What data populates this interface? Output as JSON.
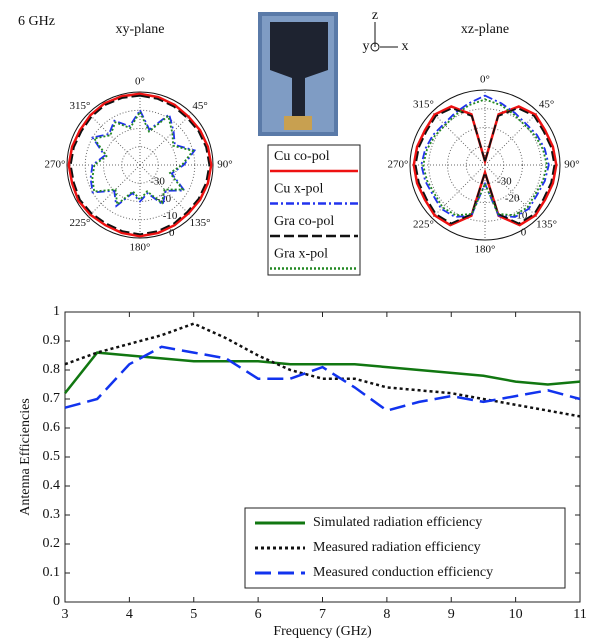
{
  "chart_data": [
    {
      "type": "polar",
      "title": "xy-plane",
      "annotations": [
        "6 GHz"
      ],
      "theta": [
        0,
        15,
        30,
        45,
        60,
        75,
        90,
        105,
        120,
        135,
        150,
        165,
        180,
        195,
        210,
        225,
        240,
        255,
        270,
        285,
        300,
        315,
        330,
        345
      ],
      "rlim": [
        -40,
        0
      ],
      "rticks": [
        -30,
        -20,
        -10,
        0
      ],
      "grid": true,
      "angle_ticks": [
        {
          "value": 0,
          "label": "0°"
        },
        {
          "value": 45,
          "label": "45°"
        },
        {
          "value": 90,
          "label": "90°"
        },
        {
          "value": 135,
          "label": "135°"
        },
        {
          "value": 180,
          "label": "180°"
        },
        {
          "value": 225,
          "label": "225°"
        },
        {
          "value": 270,
          "label": "270°"
        },
        {
          "value": 315,
          "label": "315°"
        }
      ],
      "series": [
        {
          "name": "Cu co-pol",
          "color": "#ee1111",
          "line_style": "solid",
          "values": [
            -1,
            -1.5,
            -2,
            -2.5,
            -2,
            -1.5,
            -1,
            -1.5,
            -2,
            -2.5,
            -2,
            -1.5,
            -1,
            -1.5,
            -2,
            -1.5,
            -1,
            -1.5,
            -1,
            -1.5,
            -2,
            -1.5,
            -1,
            -1
          ]
        },
        {
          "name": "Cu x-pol",
          "color": "#2233ee",
          "line_style": "dashdot",
          "values": [
            -10,
            -20,
            -8,
            -14,
            -18,
            -9,
            -16,
            -22,
            -12,
            -20,
            -15,
            -24,
            -20,
            -24,
            -14,
            -20,
            -10,
            -12,
            -14,
            -20,
            -10,
            -16,
            -12,
            -18
          ]
        },
        {
          "name": "Gra co-pol",
          "color": "#111111",
          "line_style": "dashed",
          "values": [
            -2,
            -2.5,
            -3,
            -3.5,
            -3,
            -2.5,
            -2,
            -2.5,
            -3,
            -3.5,
            -3,
            -2.5,
            -2,
            -2.5,
            -3,
            -2.5,
            -2,
            -2.5,
            -2,
            -2.5,
            -3,
            -2.5,
            -2,
            -2
          ]
        },
        {
          "name": "Gra x-pol",
          "color": "#228822",
          "line_style": "dotted",
          "values": [
            -11,
            -21,
            -9,
            -15,
            -19,
            -10,
            -17,
            -23,
            -13,
            -21,
            -16,
            -25,
            -21,
            -25,
            -15,
            -21,
            -11,
            -13,
            -15,
            -21,
            -11,
            -17,
            -13,
            -19
          ]
        }
      ]
    },
    {
      "type": "polar",
      "title": "xz-plane",
      "annotations": [
        "z",
        "y",
        "x"
      ],
      "theta": [
        0,
        15,
        30,
        45,
        60,
        75,
        90,
        105,
        120,
        135,
        150,
        165,
        180,
        195,
        210,
        225,
        240,
        255,
        270,
        285,
        300,
        315,
        330,
        345
      ],
      "rlim": [
        -40,
        0
      ],
      "rticks": [
        -30,
        -20,
        -10,
        0
      ],
      "grid": true,
      "angle_ticks": [
        {
          "value": 0,
          "label": "0°"
        },
        {
          "value": 45,
          "label": "45°"
        },
        {
          "value": 90,
          "label": "90°"
        },
        {
          "value": 135,
          "label": "135°"
        },
        {
          "value": 180,
          "label": "180°"
        },
        {
          "value": 225,
          "label": "225°"
        },
        {
          "value": 270,
          "label": "270°"
        },
        {
          "value": 315,
          "label": "315°"
        }
      ],
      "series": [
        {
          "color": "#ee1111",
          "line_style": "solid",
          "values": [
            -38,
            -12,
            -4,
            -2,
            -3,
            -2.5,
            -2,
            -2.5,
            -3,
            -2,
            -3,
            -12,
            -36,
            -12,
            -3,
            -2,
            -3,
            -2.5,
            -2,
            -2.5,
            -3,
            -2,
            -4,
            -12
          ]
        },
        {
          "color": "#2233ee",
          "line_style": "dashdot",
          "values": [
            -3,
            -6,
            -8,
            -9,
            -8,
            -7,
            -6,
            -7,
            -8,
            -7,
            -8,
            -12,
            -30,
            -12,
            -8,
            -7,
            -8,
            -7,
            -6,
            -7,
            -8,
            -9,
            -8,
            -6
          ]
        },
        {
          "color": "#111111",
          "line_style": "dashed",
          "values": [
            -38,
            -13,
            -5,
            -3,
            -4,
            -3.5,
            -3,
            -3.5,
            -4,
            -3,
            -4,
            -13,
            -36,
            -13,
            -4,
            -3,
            -4,
            -3.5,
            -3,
            -3.5,
            -4,
            -3,
            -5,
            -13
          ]
        },
        {
          "color": "#228822",
          "line_style": "dotted",
          "values": [
            -5,
            -7,
            -9,
            -10,
            -9,
            -8,
            -7,
            -8,
            -9,
            -8,
            -9,
            -13,
            -30,
            -13,
            -9,
            -8,
            -9,
            -8,
            -7,
            -8,
            -9,
            -10,
            -9,
            -7
          ]
        }
      ]
    },
    {
      "type": "line",
      "x_label": "Frequency (GHz)",
      "y_label": "Antenna Efficiencies",
      "x": [
        3,
        3.5,
        4,
        4.5,
        5,
        5.5,
        6,
        6.5,
        7,
        7.5,
        8,
        8.5,
        9,
        9.5,
        10,
        10.5,
        11
      ],
      "xlim": [
        3,
        11
      ],
      "xticks": [
        3,
        4,
        5,
        6,
        7,
        8,
        9,
        10,
        11
      ],
      "ylim": [
        0,
        1
      ],
      "yticks": [
        0,
        0.1,
        0.2,
        0.3,
        0.4,
        0.5,
        0.6,
        0.7,
        0.8,
        0.9,
        1
      ],
      "series": [
        {
          "name": "Simulated radiation efficiency",
          "color": "#117711",
          "line_style": "solid",
          "values": [
            0.72,
            0.86,
            0.85,
            0.84,
            0.83,
            0.83,
            0.83,
            0.82,
            0.82,
            0.82,
            0.81,
            0.8,
            0.79,
            0.78,
            0.76,
            0.75,
            0.76
          ]
        },
        {
          "name": "Measured radiation efficiency",
          "color": "#111111",
          "line_style": "dotted",
          "values": [
            0.82,
            0.86,
            0.89,
            0.92,
            0.96,
            0.91,
            0.85,
            0.8,
            0.77,
            0.77,
            0.74,
            0.73,
            0.72,
            0.7,
            0.68,
            0.66,
            0.64
          ]
        },
        {
          "name": "Measured conduction efficiency",
          "color": "#1133ee",
          "line_style": "dashed",
          "values": [
            0.67,
            0.7,
            0.82,
            0.88,
            0.86,
            0.84,
            0.77,
            0.77,
            0.81,
            0.74,
            0.66,
            0.69,
            0.71,
            0.69,
            0.71,
            0.73,
            0.7
          ]
        }
      ]
    }
  ]
}
